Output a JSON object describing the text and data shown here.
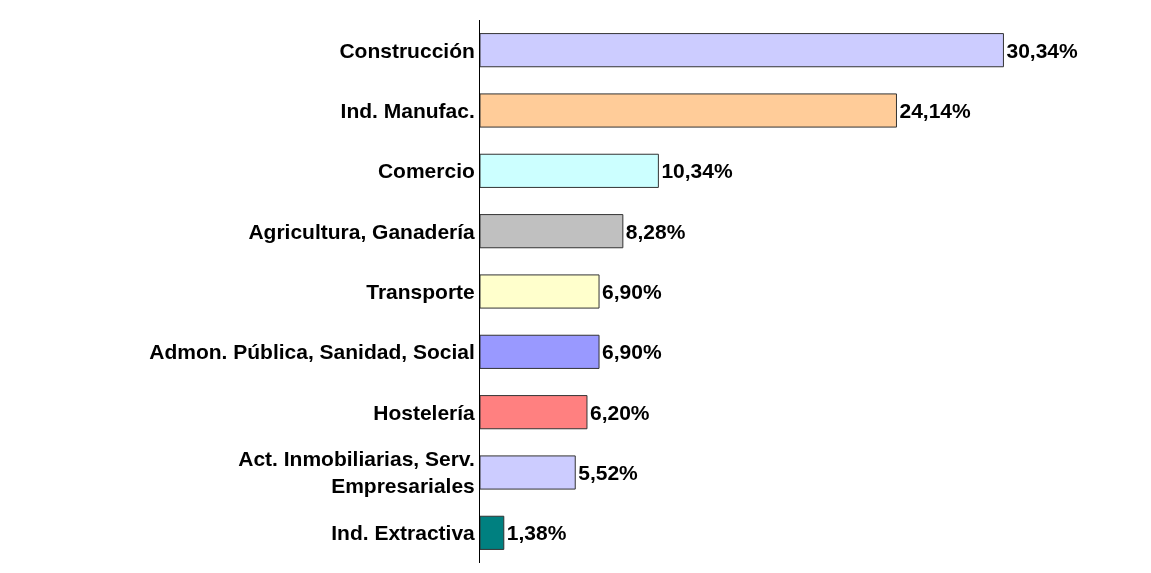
{
  "chart_data": {
    "type": "bar",
    "orientation": "horizontal",
    "categories": [
      "Construcción",
      "Ind. Manufac.",
      "Comercio",
      "Agricultura, Ganadería",
      "Transporte",
      "Admon. Pública, Sanidad, Social",
      "Hostelería",
      "Act. Inmobiliarias, Serv. Empresariales",
      "Ind. Extractiva"
    ],
    "values": [
      30.34,
      24.14,
      10.34,
      8.28,
      6.9,
      6.9,
      6.2,
      5.52,
      1.38
    ],
    "value_labels": [
      "30,34%",
      "24,14%",
      "10,34%",
      "8,28%",
      "6,90%",
      "6,90%",
      "6,20%",
      "5,52%",
      "1,38%"
    ],
    "colors": [
      "#ccccff",
      "#ffcc99",
      "#ccffff",
      "#c0c0c0",
      "#ffffcc",
      "#9999ff",
      "#ff8080",
      "#ccccff",
      "#008080"
    ]
  }
}
